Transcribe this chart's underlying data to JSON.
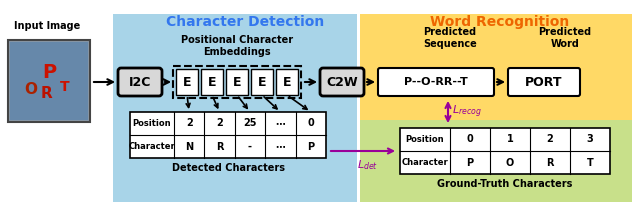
{
  "title_left": "Character Detection",
  "title_right": "Word Recognition",
  "title_left_color": "#3377EE",
  "title_right_color": "#EE6600",
  "bg_left_color": "#A8D4E8",
  "bg_right_top_color": "#FFD966",
  "bg_right_bot_color": "#C8E08A",
  "input_label": "Input Image",
  "i2c_label": "I2C",
  "c2w_label": "C2W",
  "embed_label": "E",
  "embed_count": 5,
  "pos_embed_title": "Positional Character\nEmbeddings",
  "detected_title": "Detected Characters",
  "pred_seq_title": "Predicted\nSequence",
  "pred_word_title": "Predicted\nWord",
  "gt_title": "Ground-Truth Characters",
  "pred_seq_value": "P--O-RR--T",
  "pred_word_value": "PORT",
  "det_pos": [
    "2",
    "2",
    "25",
    "⋯",
    "0"
  ],
  "det_char": [
    "N",
    "R",
    "-",
    "⋯",
    "P"
  ],
  "gt_pos": [
    "0",
    "1",
    "2",
    "3"
  ],
  "gt_char": [
    "P",
    "O",
    "R",
    "T"
  ],
  "arrow_color": "#990099",
  "box_bg": "#D8D8D8",
  "white": "#FFFFFF",
  "black": "#000000",
  "figw": 6.4,
  "figh": 2.12
}
